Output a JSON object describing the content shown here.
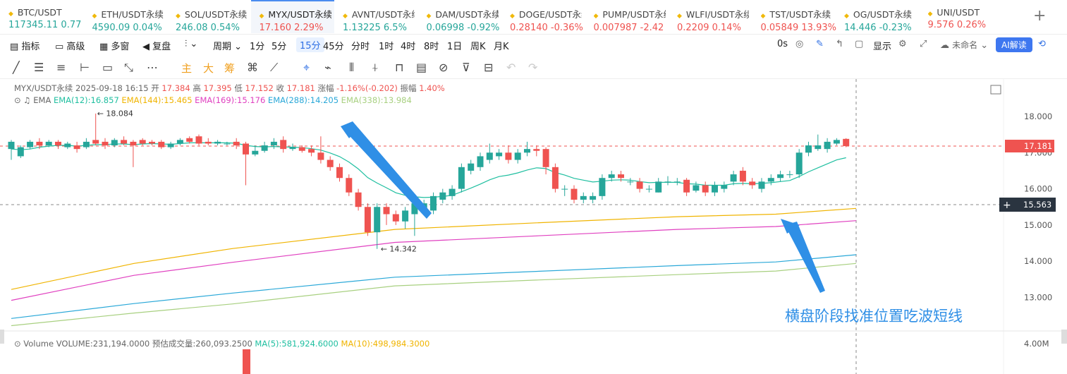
{
  "tickers": [
    {
      "name": "BTC/USDT",
      "price": "117345.11",
      "change": "0.77",
      "dir": "up"
    },
    {
      "name": "ETH/USDT永续",
      "price": "4590.09",
      "change": "0.04%",
      "dir": "up"
    },
    {
      "name": "SOL/USDT永续",
      "price": "246.08",
      "change": "0.54%",
      "dir": "up"
    },
    {
      "name": "MYX/USDT永续",
      "price": "17.160",
      "change": "2.29%",
      "dir": "dn",
      "active": true
    },
    {
      "name": "AVNT/USDT永续",
      "price": "1.13225",
      "change": "6.5%",
      "dir": "up"
    },
    {
      "name": "DAM/USDT永续",
      "price": "0.06998",
      "change": "-0.92%",
      "dir": "up"
    },
    {
      "name": "DOGE/USDT永续",
      "price": "0.28140",
      "change": "-0.36%",
      "dir": "dn"
    },
    {
      "name": "PUMP/USDT永续",
      "price": "0.007987",
      "change": "-2.42",
      "dir": "dn"
    },
    {
      "name": "WLFI/USDT永续",
      "price": "0.2209",
      "change": "0.14%",
      "dir": "dn"
    },
    {
      "name": "TST/USDT永续",
      "price": "0.05849",
      "change": "13.93%",
      "dir": "dn"
    },
    {
      "name": "OG/USDT永续",
      "price": "14.446",
      "change": "-0.23%",
      "dir": "up"
    },
    {
      "name": "UNI/USDT",
      "price": "9.576",
      "change": "0.26%",
      "dir": "dn"
    }
  ],
  "toolbar": {
    "indicator": "指标",
    "advanced": "高级",
    "multi": "多窗",
    "replay": "复盘",
    "period": "周期",
    "timeframes": [
      "1分",
      "5分",
      "15分",
      "45分",
      "分时",
      "1时",
      "4时",
      "8时",
      "1日",
      "周K",
      "月K"
    ],
    "selected_tf": "15分",
    "countdown": "0s",
    "display": "显示",
    "layout_name": "未命名",
    "ai": "AI解读"
  },
  "draw_tools": {
    "main": "主",
    "big": "大",
    "chips": "筹"
  },
  "info": {
    "symbol": "MYX/USDT永续",
    "datetime": "2025-09-18 16:15",
    "open_label": "开",
    "open": "17.384",
    "high_label": "高",
    "high": "17.395",
    "low_label": "低",
    "low": "17.152",
    "close_label": "收",
    "close": "17.181",
    "change_label": "涨幅",
    "change": "-1.16%(-0.202)",
    "amp_label": "振幅",
    "amp": "1.40%"
  },
  "ema_legend": {
    "title": "EMA",
    "items": [
      {
        "text": "EMA(12):16.857",
        "color": "#1fbfa0"
      },
      {
        "text": "EMA(144):15.465",
        "color": "#f0b400"
      },
      {
        "text": "EMA(169):15.176",
        "color": "#e040c0"
      },
      {
        "text": "EMA(288):14.205",
        "color": "#2aa8d8"
      },
      {
        "text": "EMA(338):13.984",
        "color": "#a8d080"
      }
    ]
  },
  "volume_legend": {
    "label": "Volume",
    "volume": "VOLUME:231,194.0000",
    "est": "预估成交量:260,093.2500",
    "ma5": "MA(5):581,924.6000",
    "ma10": "MA(10):498,984.3000",
    "ma5_color": "#1fbfa0",
    "ma10_color": "#f0b400"
  },
  "price_axis": {
    "ticks": [
      "18.000",
      "17.000",
      "16.000",
      "15.000",
      "14.000",
      "13.000"
    ],
    "current": "17.181",
    "crosshair": "15.563",
    "volume_tick": "4.00M"
  },
  "markers": {
    "high": "18.084",
    "low": "14.342"
  },
  "annotation": "横盘阶段找准位置吃波短线",
  "colors": {
    "up": "#26a69a",
    "down": "#ef5350",
    "accent": "#2f6fe4",
    "arrow": "#2f8fe6"
  },
  "chart_data": {
    "type": "candlestick",
    "ylim": [
      12.6,
      18.5
    ],
    "candles": [
      [
        17.1,
        17.3,
        16.8,
        17.35
      ],
      [
        16.9,
        17.15,
        16.85,
        17.2
      ],
      [
        17.15,
        17.3,
        17.1,
        17.35
      ],
      [
        17.3,
        17.2,
        17.1,
        17.4
      ],
      [
        17.2,
        17.3,
        17.15,
        17.35
      ],
      [
        17.3,
        17.2,
        17.1,
        17.35
      ],
      [
        17.15,
        17.25,
        17.1,
        17.3
      ],
      [
        17.2,
        17.1,
        17.0,
        17.3
      ],
      [
        17.15,
        17.3,
        17.1,
        17.4
      ],
      [
        17.35,
        17.25,
        17.2,
        18.08
      ],
      [
        17.3,
        17.2,
        17.1,
        17.4
      ],
      [
        17.2,
        17.35,
        17.15,
        17.4
      ],
      [
        17.35,
        17.25,
        17.2,
        17.45
      ],
      [
        17.3,
        17.2,
        16.6,
        17.35
      ],
      [
        17.35,
        17.25,
        17.2,
        17.4
      ],
      [
        17.3,
        17.25,
        17.2,
        17.35
      ],
      [
        17.3,
        17.15,
        17.1,
        17.35
      ],
      [
        17.15,
        17.25,
        17.1,
        17.3
      ],
      [
        17.25,
        17.35,
        17.2,
        17.4
      ],
      [
        17.4,
        17.3,
        17.25,
        17.45
      ],
      [
        17.45,
        17.25,
        17.2,
        17.5
      ],
      [
        17.3,
        17.25,
        17.2,
        17.4
      ],
      [
        17.25,
        17.3,
        17.2,
        17.35
      ],
      [
        17.25,
        17.25,
        17.2,
        17.3
      ],
      [
        17.3,
        17.2,
        17.1,
        17.4
      ],
      [
        17.25,
        16.95,
        16.1,
        17.3
      ],
      [
        16.95,
        17.05,
        16.9,
        17.2
      ],
      [
        17.05,
        17.2,
        17.0,
        17.3
      ],
      [
        17.2,
        17.3,
        17.1,
        17.4
      ],
      [
        17.35,
        17.1,
        17.0,
        17.45
      ],
      [
        17.1,
        17.15,
        17.05,
        17.25
      ],
      [
        17.15,
        17.05,
        17.0,
        17.2
      ],
      [
        17.1,
        17.0,
        16.9,
        17.2
      ],
      [
        17.0,
        16.8,
        16.7,
        17.45
      ],
      [
        16.8,
        16.6,
        16.5,
        16.9
      ],
      [
        16.6,
        16.3,
        16.2,
        16.7
      ],
      [
        16.3,
        15.9,
        15.8,
        16.4
      ],
      [
        15.9,
        15.5,
        15.4,
        16.0
      ],
      [
        15.5,
        14.8,
        14.7,
        15.6
      ],
      [
        14.8,
        15.5,
        14.34,
        15.6
      ],
      [
        15.5,
        15.3,
        15.0,
        15.6
      ],
      [
        15.3,
        15.1,
        15.0,
        15.4
      ],
      [
        15.1,
        15.4,
        14.9,
        15.5
      ],
      [
        15.3,
        15.6,
        14.7,
        15.6
      ],
      [
        15.4,
        15.6,
        15.3,
        15.7
      ],
      [
        15.4,
        15.8,
        15.3,
        15.9
      ],
      [
        15.7,
        15.9,
        15.6,
        16.0
      ],
      [
        15.8,
        16.0,
        15.7,
        16.1
      ],
      [
        16.0,
        16.6,
        15.9,
        16.7
      ],
      [
        16.5,
        16.7,
        16.4,
        16.8
      ],
      [
        16.6,
        16.9,
        16.5,
        17.0
      ],
      [
        16.8,
        17.0,
        16.7,
        17.25
      ],
      [
        16.9,
        17.0,
        16.8,
        17.1
      ],
      [
        17.0,
        16.8,
        16.7,
        17.2
      ],
      [
        16.8,
        17.0,
        16.7,
        17.1
      ],
      [
        17.0,
        17.1,
        16.9,
        17.3
      ],
      [
        17.1,
        17.05,
        16.9,
        17.2
      ],
      [
        17.1,
        16.6,
        16.4,
        17.15
      ],
      [
        16.6,
        16.0,
        15.9,
        16.7
      ],
      [
        16.0,
        16.0,
        15.8,
        16.1
      ],
      [
        16.0,
        15.7,
        15.6,
        16.1
      ],
      [
        15.7,
        15.8,
        15.6,
        15.9
      ],
      [
        15.7,
        15.8,
        15.6,
        15.9
      ],
      [
        15.8,
        16.3,
        15.7,
        16.4
      ],
      [
        16.3,
        16.4,
        16.2,
        16.5
      ],
      [
        16.4,
        16.3,
        16.2,
        16.5
      ],
      [
        16.2,
        16.2,
        16.1,
        16.3
      ],
      [
        16.2,
        16.0,
        15.9,
        16.3
      ],
      [
        16.0,
        16.0,
        15.9,
        16.1
      ],
      [
        15.9,
        16.2,
        15.9,
        16.3
      ],
      [
        16.2,
        16.2,
        16.1,
        16.35
      ],
      [
        16.2,
        16.2,
        16.1,
        16.3
      ],
      [
        16.25,
        15.9,
        15.8,
        16.3
      ],
      [
        15.95,
        16.1,
        15.9,
        16.2
      ],
      [
        16.1,
        15.9,
        15.8,
        16.2
      ],
      [
        15.9,
        16.1,
        15.8,
        16.2
      ],
      [
        16.0,
        16.1,
        15.9,
        16.2
      ],
      [
        16.2,
        16.4,
        16.1,
        16.5
      ],
      [
        16.5,
        16.2,
        16.1,
        16.6
      ],
      [
        16.2,
        16.1,
        16.0,
        16.3
      ],
      [
        16.0,
        16.2,
        15.9,
        16.3
      ],
      [
        16.2,
        16.3,
        16.1,
        16.4
      ],
      [
        16.3,
        16.4,
        16.2,
        16.5
      ],
      [
        16.4,
        16.4,
        16.3,
        16.5
      ],
      [
        16.4,
        17.0,
        16.3,
        17.1
      ],
      [
        17.0,
        17.2,
        16.9,
        17.3
      ],
      [
        17.1,
        17.2,
        17.05,
        17.5
      ],
      [
        17.1,
        17.3,
        17.0,
        17.4
      ],
      [
        17.25,
        17.35,
        17.2,
        17.4
      ],
      [
        17.38,
        17.18,
        17.15,
        17.4
      ]
    ],
    "ema12": [
      17.1,
      17.08,
      17.1,
      17.15,
      17.18,
      17.2,
      17.2,
      17.18,
      17.2,
      17.22,
      17.22,
      17.24,
      17.24,
      17.22,
      17.24,
      17.25,
      17.24,
      17.23,
      17.25,
      17.27,
      17.27,
      17.27,
      17.27,
      17.27,
      17.26,
      17.2,
      17.17,
      17.16,
      17.17,
      17.16,
      17.15,
      17.14,
      17.11,
      17.07,
      16.99,
      16.89,
      16.74,
      16.55,
      16.31,
      16.16,
      16.03,
      15.89,
      15.82,
      15.78,
      15.76,
      15.77,
      15.79,
      15.82,
      15.92,
      16.02,
      16.13,
      16.25,
      16.34,
      16.38,
      16.44,
      16.52,
      16.58,
      16.56,
      16.45,
      16.38,
      16.29,
      16.24,
      16.19,
      16.21,
      16.24,
      16.25,
      16.24,
      16.2,
      16.17,
      16.18,
      16.18,
      16.18,
      16.14,
      16.13,
      16.1,
      16.1,
      16.1,
      16.14,
      16.15,
      16.14,
      16.15,
      16.17,
      16.2,
      16.23,
      16.34,
      16.47,
      16.58,
      16.69,
      16.8,
      16.86
    ],
    "ema144": [
      13.22,
      13.94,
      14.35,
      14.88,
      15.06,
      15.23,
      15.3,
      15.46
    ],
    "ema169": [
      12.92,
      13.61,
      13.97,
      14.52,
      14.7,
      14.88,
      14.96,
      15.12
    ],
    "ema288": [
      12.42,
      12.83,
      13.12,
      13.56,
      13.72,
      13.88,
      13.98,
      14.18
    ],
    "ema338": [
      12.22,
      12.57,
      12.82,
      13.32,
      13.48,
      13.63,
      13.73,
      13.94
    ]
  }
}
